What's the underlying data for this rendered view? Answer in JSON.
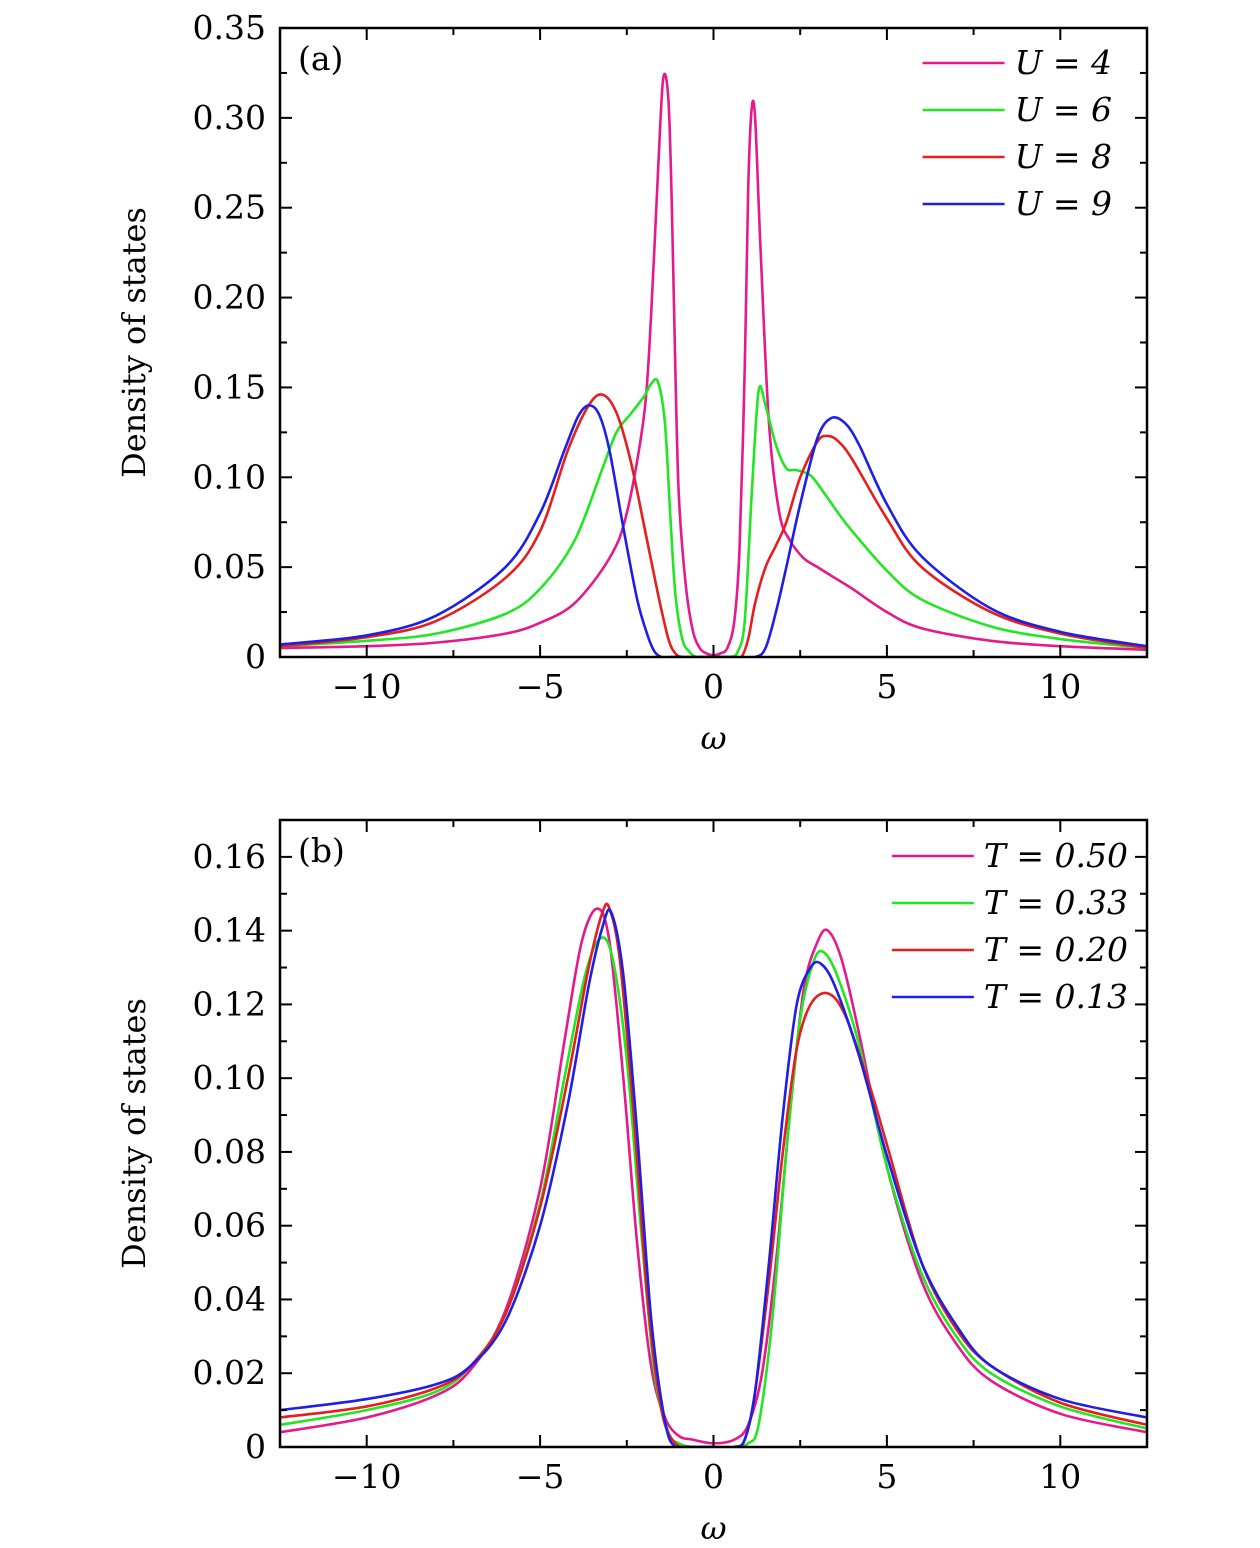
{
  "chart_data": [
    {
      "type": "line",
      "panel_label": "(a)",
      "xlabel": "ω",
      "ylabel": "Density of states",
      "xlim": [
        -12.5,
        12.5
      ],
      "ylim": [
        0,
        0.35
      ],
      "xticks": [
        -10,
        -5,
        0,
        5,
        10
      ],
      "xtick_labels": [
        "−10",
        "−5",
        "0",
        "5",
        "10"
      ],
      "yticks": [
        0,
        0.05,
        0.1,
        0.15,
        0.2,
        0.25,
        0.3,
        0.35
      ],
      "ytick_labels": [
        "0",
        "0.05",
        "0.10",
        "0.15",
        "0.20",
        "0.25",
        "0.30",
        "0.35"
      ],
      "legend_position": "top-right",
      "series": [
        {
          "name": "U = 4",
          "color": "#e6198c",
          "x": [
            -12.5,
            -10,
            -8,
            -6,
            -5,
            -4,
            -3,
            -2.5,
            -2,
            -1.8,
            -1.6,
            -1.45,
            -1.3,
            -1.2,
            -1.1,
            -1.0,
            -0.8,
            -0.6,
            -0.4,
            -0.2,
            0,
            0.2,
            0.4,
            0.6,
            0.75,
            0.9,
            1.0,
            1.1,
            1.2,
            1.35,
            1.6,
            1.9,
            2.2,
            2.6,
            3,
            3.5,
            4,
            5,
            6,
            8,
            10,
            12.5
          ],
          "y": [
            0.005,
            0.006,
            0.008,
            0.013,
            0.019,
            0.03,
            0.055,
            0.08,
            0.135,
            0.19,
            0.27,
            0.322,
            0.31,
            0.25,
            0.16,
            0.09,
            0.04,
            0.015,
            0.005,
            0.002,
            0.001,
            0.002,
            0.005,
            0.02,
            0.06,
            0.16,
            0.26,
            0.305,
            0.3,
            0.23,
            0.13,
            0.08,
            0.065,
            0.055,
            0.05,
            0.044,
            0.038,
            0.025,
            0.016,
            0.009,
            0.006,
            0.004
          ]
        },
        {
          "name": "U = 6",
          "color": "#22e622",
          "x": [
            -12.5,
            -10,
            -8,
            -6,
            -5,
            -4,
            -3.2,
            -2.8,
            -2.4,
            -2,
            -1.8,
            -1.6,
            -1.4,
            -1.25,
            -1.1,
            -0.9,
            -0.7,
            -0.5,
            -0.3,
            0,
            0.3,
            0.5,
            0.7,
            0.9,
            1.1,
            1.3,
            1.5,
            1.8,
            2.1,
            2.4,
            2.8,
            3.2,
            3.6,
            4,
            5,
            6,
            8,
            10,
            12.5
          ],
          "y": [
            0.006,
            0.009,
            0.013,
            0.024,
            0.038,
            0.065,
            0.105,
            0.125,
            0.135,
            0.145,
            0.152,
            0.153,
            0.13,
            0.08,
            0.035,
            0.01,
            0.003,
            0.0,
            0.0,
            0.0,
            0.0,
            0.0,
            0.003,
            0.02,
            0.09,
            0.148,
            0.14,
            0.118,
            0.105,
            0.104,
            0.101,
            0.091,
            0.08,
            0.07,
            0.048,
            0.032,
            0.017,
            0.01,
            0.005
          ]
        },
        {
          "name": "U = 8",
          "color": "#e61e1e",
          "x": [
            -12.5,
            -10,
            -8,
            -6,
            -5,
            -4.2,
            -3.6,
            -3.2,
            -2.8,
            -2.4,
            -2,
            -1.6,
            -1.3,
            -1.1,
            -0.9,
            -0.5,
            0,
            0.5,
            0.8,
            1.0,
            1.2,
            1.5,
            1.8,
            2.1,
            2.5,
            3,
            3.3,
            3.6,
            4,
            5,
            6,
            8,
            10,
            12.5
          ],
          "y": [
            0.006,
            0.011,
            0.02,
            0.044,
            0.07,
            0.115,
            0.14,
            0.146,
            0.136,
            0.11,
            0.073,
            0.035,
            0.01,
            0.002,
            0.0,
            0.0,
            0.0,
            0.0,
            0.0,
            0.01,
            0.03,
            0.05,
            0.062,
            0.075,
            0.1,
            0.12,
            0.123,
            0.12,
            0.11,
            0.077,
            0.05,
            0.025,
            0.013,
            0.005
          ]
        },
        {
          "name": "U = 9",
          "color": "#1e1ee6",
          "x": [
            -12.5,
            -10,
            -8,
            -6,
            -5,
            -4.3,
            -3.9,
            -3.6,
            -3.3,
            -3,
            -2.6,
            -2.2,
            -1.9,
            -1.7,
            -1.5,
            -1.2,
            -0.5,
            0,
            0.5,
            1.2,
            1.5,
            1.8,
            2.1,
            2.5,
            3,
            3.4,
            3.8,
            4.2,
            5,
            6,
            8,
            10,
            12.5
          ],
          "y": [
            0.007,
            0.012,
            0.023,
            0.05,
            0.08,
            0.115,
            0.134,
            0.14,
            0.135,
            0.115,
            0.072,
            0.032,
            0.012,
            0.003,
            0.0,
            0.0,
            0.0,
            0.0,
            0.0,
            0.0,
            0.005,
            0.025,
            0.05,
            0.085,
            0.122,
            0.133,
            0.13,
            0.118,
            0.085,
            0.056,
            0.027,
            0.014,
            0.006
          ]
        }
      ]
    },
    {
      "type": "line",
      "panel_label": "(b)",
      "xlabel": "ω",
      "ylabel": "Density of states",
      "xlim": [
        -12.5,
        12.5
      ],
      "ylim": [
        0,
        0.17
      ],
      "xticks": [
        -10,
        -5,
        0,
        5,
        10
      ],
      "xtick_labels": [
        "−10",
        "−5",
        "0",
        "5",
        "10"
      ],
      "yticks": [
        0,
        0.02,
        0.04,
        0.06,
        0.08,
        0.1,
        0.12,
        0.14,
        0.16
      ],
      "ytick_labels": [
        "0",
        "0.02",
        "0.04",
        "0.06",
        "0.08",
        "0.10",
        "0.12",
        "0.14",
        "0.16"
      ],
      "legend_position": "top-right",
      "series": [
        {
          "name": "T = 0.50",
          "color": "#e6198c",
          "x": [
            -12.5,
            -10,
            -8,
            -7,
            -6,
            -5,
            -4.3,
            -3.8,
            -3.35,
            -3.0,
            -2.6,
            -2.2,
            -1.8,
            -1.4,
            -1.0,
            -0.6,
            0,
            0.6,
            1.0,
            1.4,
            1.8,
            2.2,
            2.6,
            3.0,
            3.3,
            3.7,
            4.2,
            5,
            6,
            7,
            8,
            10,
            12.5
          ],
          "y": [
            0.004,
            0.008,
            0.014,
            0.021,
            0.037,
            0.07,
            0.11,
            0.137,
            0.146,
            0.137,
            0.1,
            0.055,
            0.022,
            0.008,
            0.003,
            0.002,
            0.001,
            0.002,
            0.006,
            0.02,
            0.05,
            0.09,
            0.124,
            0.137,
            0.14,
            0.132,
            0.112,
            0.076,
            0.045,
            0.028,
            0.018,
            0.009,
            0.004
          ]
        },
        {
          "name": "T = 0.33",
          "color": "#22e622",
          "x": [
            -12.5,
            -10,
            -8,
            -7,
            -6,
            -5,
            -4.3,
            -3.7,
            -3.25,
            -2.9,
            -2.5,
            -2.1,
            -1.7,
            -1.3,
            -1.0,
            -0.6,
            0,
            0.6,
            1.0,
            1.3,
            1.7,
            2.1,
            2.5,
            2.9,
            3.2,
            3.6,
            4.2,
            5,
            6,
            7,
            8,
            10,
            12.5
          ],
          "y": [
            0.006,
            0.01,
            0.015,
            0.022,
            0.036,
            0.066,
            0.1,
            0.128,
            0.138,
            0.132,
            0.105,
            0.06,
            0.02,
            0.004,
            0.001,
            0.0,
            0.0,
            0.0,
            0.001,
            0.006,
            0.035,
            0.08,
            0.116,
            0.132,
            0.134,
            0.127,
            0.109,
            0.076,
            0.047,
            0.03,
            0.02,
            0.011,
            0.005
          ]
        },
        {
          "name": "T = 0.20",
          "color": "#e61e1e",
          "x": [
            -12.5,
            -10,
            -8,
            -7,
            -6,
            -5,
            -4.2,
            -3.6,
            -3.2,
            -3.0,
            -2.7,
            -2.3,
            -1.9,
            -1.5,
            -1.1,
            -0.6,
            0,
            0.6,
            0.9,
            1.2,
            1.6,
            2.0,
            2.4,
            2.8,
            3.3,
            3.8,
            4.5,
            5,
            6,
            7,
            8,
            10,
            12.5
          ],
          "y": [
            0.008,
            0.011,
            0.016,
            0.022,
            0.036,
            0.065,
            0.1,
            0.13,
            0.145,
            0.146,
            0.132,
            0.09,
            0.04,
            0.01,
            0.001,
            0.0,
            0.0,
            0.0,
            0.002,
            0.015,
            0.045,
            0.08,
            0.108,
            0.12,
            0.123,
            0.117,
            0.098,
            0.082,
            0.05,
            0.032,
            0.022,
            0.012,
            0.006
          ]
        },
        {
          "name": "T = 0.13",
          "color": "#1e1ee6",
          "x": [
            -12.5,
            -10,
            -8,
            -7,
            -6,
            -5,
            -4.2,
            -3.6,
            -3.2,
            -2.95,
            -2.6,
            -2.2,
            -1.8,
            -1.4,
            -1.1,
            -0.6,
            0,
            0.6,
            0.9,
            1.2,
            1.6,
            2.0,
            2.4,
            2.8,
            3.1,
            3.5,
            4.2,
            5,
            6,
            7,
            8,
            10,
            12.5
          ],
          "y": [
            0.01,
            0.013,
            0.017,
            0.022,
            0.034,
            0.06,
            0.093,
            0.125,
            0.141,
            0.145,
            0.128,
            0.085,
            0.035,
            0.007,
            0.0,
            0.0,
            0.0,
            0.0,
            0.002,
            0.015,
            0.05,
            0.09,
            0.12,
            0.13,
            0.131,
            0.125,
            0.106,
            0.079,
            0.05,
            0.033,
            0.022,
            0.013,
            0.008
          ]
        }
      ]
    }
  ]
}
